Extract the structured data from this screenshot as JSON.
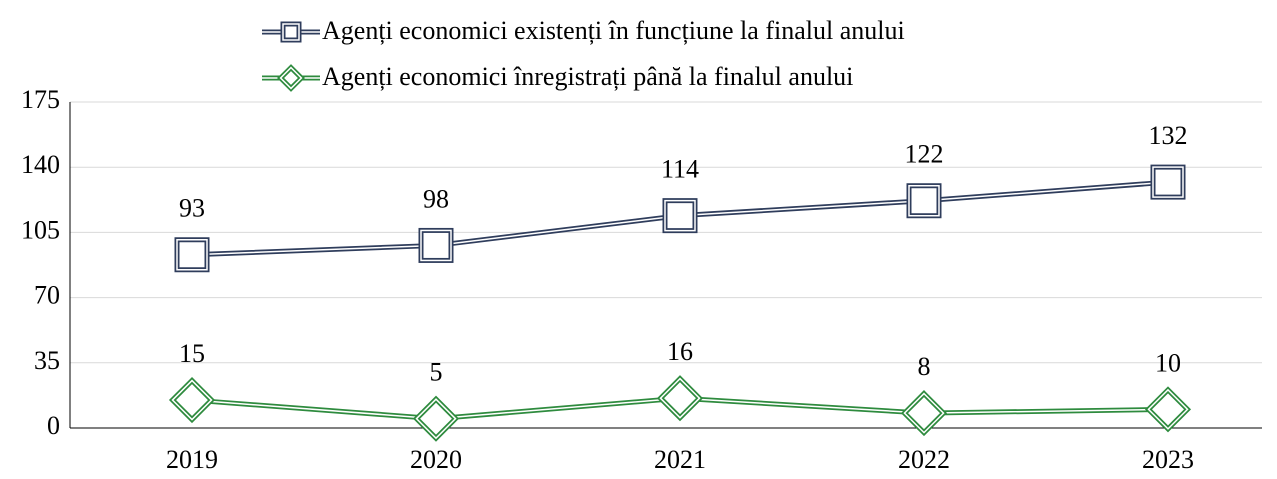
{
  "chart_data": {
    "type": "line",
    "categories": [
      "2019",
      "2020",
      "2021",
      "2022",
      "2023"
    ],
    "series": [
      {
        "name": "Agenți economici existenți în funcțiune la finalul anului",
        "color": "#2f3d5c",
        "marker": "square",
        "values": [
          93,
          98,
          114,
          122,
          132
        ]
      },
      {
        "name": "Agenți economici înregistrați până la finalul anului",
        "color": "#2e8b3e",
        "marker": "diamond",
        "values": [
          15,
          5,
          16,
          8,
          10
        ]
      }
    ],
    "ylim": [
      0,
      175
    ],
    "yticks": [
      0,
      35,
      70,
      105,
      140,
      175
    ],
    "grid": true,
    "legend": "top"
  }
}
